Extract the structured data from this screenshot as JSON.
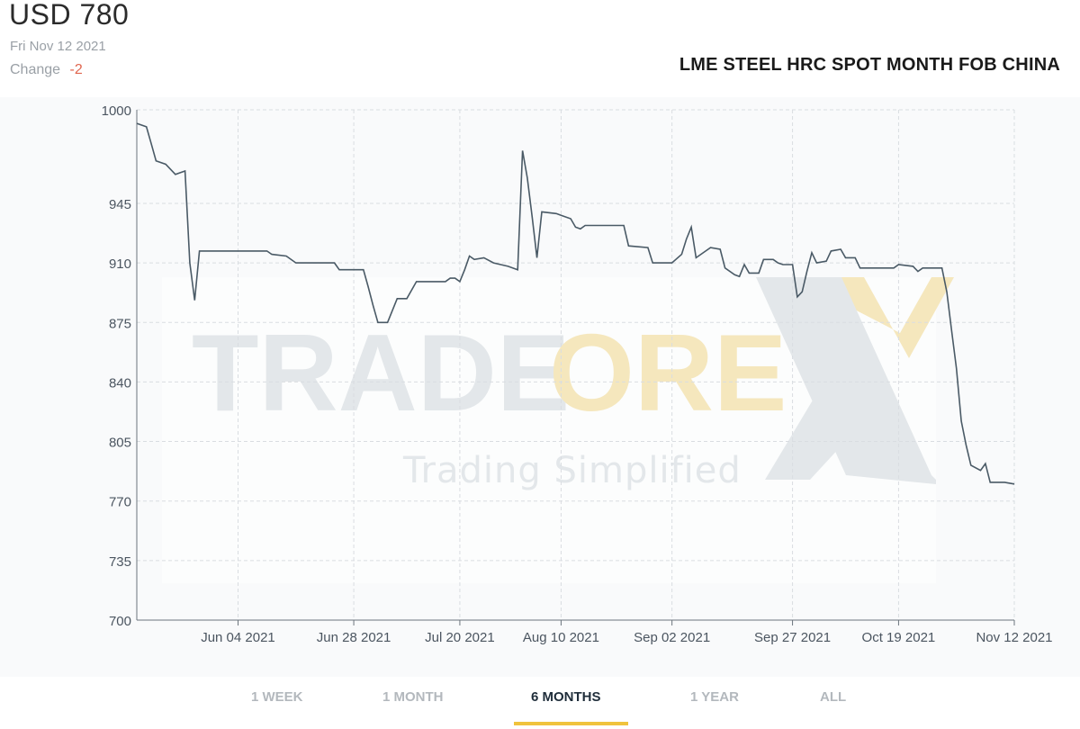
{
  "header": {
    "price": "USD 780",
    "date": "Fri Nov 12 2021",
    "change_label": "Change",
    "change_value": "-2"
  },
  "watermark": {
    "brand_left": "TRADE",
    "brand_mid": "ORE",
    "tagline": "Trading Simplified"
  },
  "colors": {
    "line": "#4a5a66",
    "grid": "#d9dde1",
    "change_negative": "#e0664f",
    "tab_active_underline": "#f0c33c",
    "watermark_gold": "#f3e3b3",
    "watermark_gray": "#e7eaec"
  },
  "tabs": [
    {
      "label": "1 WEEK",
      "active": false
    },
    {
      "label": "1 MONTH",
      "active": false
    },
    {
      "label": "6 MONTHS",
      "active": true
    },
    {
      "label": "1 YEAR",
      "active": false
    },
    {
      "label": "ALL",
      "active": false
    }
  ],
  "chart_data": {
    "type": "line",
    "title": "LME STEEL HRC SPOT MONTH FOB CHINA",
    "xlabel": "",
    "ylabel": "",
    "ylim": [
      700,
      1000
    ],
    "y_ticks": [
      1000,
      945,
      910,
      875,
      840,
      805,
      770,
      735,
      700
    ],
    "x_tick_labels": [
      "Jun 04 2021",
      "Jun 28 2021",
      "Jul 20 2021",
      "Aug 10 2021",
      "Sep 02 2021",
      "Sep 27 2021",
      "Oct 19 2021",
      "Nov 12 2021"
    ],
    "x_range": [
      "2021-05-14",
      "2021-11-12"
    ],
    "grid": true,
    "series": [
      {
        "points": [
          [
            "2021-05-14",
            992
          ],
          [
            "2021-05-16",
            990
          ],
          [
            "2021-05-17",
            980
          ],
          [
            "2021-05-18",
            970
          ],
          [
            "2021-05-20",
            968
          ],
          [
            "2021-05-22",
            962
          ],
          [
            "2021-05-23",
            963
          ],
          [
            "2021-05-24",
            964
          ],
          [
            "2021-05-25",
            910
          ],
          [
            "2021-05-26",
            888
          ],
          [
            "2021-05-27",
            917
          ],
          [
            "2021-06-10",
            917
          ],
          [
            "2021-06-11",
            915
          ],
          [
            "2021-06-14",
            914
          ],
          [
            "2021-06-16",
            910
          ],
          [
            "2021-06-24",
            910
          ],
          [
            "2021-06-25",
            906
          ],
          [
            "2021-06-30",
            906
          ],
          [
            "2021-07-01",
            896
          ],
          [
            "2021-07-02",
            885
          ],
          [
            "2021-07-03",
            875
          ],
          [
            "2021-07-05",
            875
          ],
          [
            "2021-07-07",
            889
          ],
          [
            "2021-07-09",
            889
          ],
          [
            "2021-07-11",
            899
          ],
          [
            "2021-07-17",
            899
          ],
          [
            "2021-07-18",
            901
          ],
          [
            "2021-07-19",
            901
          ],
          [
            "2021-07-20",
            899
          ],
          [
            "2021-07-21",
            906
          ],
          [
            "2021-07-22",
            914
          ],
          [
            "2021-07-23",
            912
          ],
          [
            "2021-07-25",
            913
          ],
          [
            "2021-07-27",
            910
          ],
          [
            "2021-07-30",
            908
          ],
          [
            "2021-08-01",
            906
          ],
          [
            "2021-08-02",
            976
          ],
          [
            "2021-08-03",
            960
          ],
          [
            "2021-08-04",
            937
          ],
          [
            "2021-08-05",
            913
          ],
          [
            "2021-08-06",
            940
          ],
          [
            "2021-08-09",
            939
          ],
          [
            "2021-08-10",
            938
          ],
          [
            "2021-08-12",
            936
          ],
          [
            "2021-08-13",
            931
          ],
          [
            "2021-08-14",
            930
          ],
          [
            "2021-08-15",
            932
          ],
          [
            "2021-08-23",
            932
          ],
          [
            "2021-08-24",
            920
          ],
          [
            "2021-08-28",
            919
          ],
          [
            "2021-08-29",
            910
          ],
          [
            "2021-09-02",
            910
          ],
          [
            "2021-09-04",
            915
          ],
          [
            "2021-09-05",
            924
          ],
          [
            "2021-09-06",
            931
          ],
          [
            "2021-09-07",
            913
          ],
          [
            "2021-09-09",
            917
          ],
          [
            "2021-09-10",
            919
          ],
          [
            "2021-09-12",
            918
          ],
          [
            "2021-09-13",
            907
          ],
          [
            "2021-09-15",
            903
          ],
          [
            "2021-09-16",
            902
          ],
          [
            "2021-09-17",
            909
          ],
          [
            "2021-09-18",
            904
          ],
          [
            "2021-09-20",
            904
          ],
          [
            "2021-09-21",
            912
          ],
          [
            "2021-09-23",
            912
          ],
          [
            "2021-09-24",
            910
          ],
          [
            "2021-09-25",
            909
          ],
          [
            "2021-09-27",
            909
          ],
          [
            "2021-09-28",
            890
          ],
          [
            "2021-09-29",
            893
          ],
          [
            "2021-09-30",
            905
          ],
          [
            "2021-10-01",
            916
          ],
          [
            "2021-10-02",
            910
          ],
          [
            "2021-10-04",
            911
          ],
          [
            "2021-10-05",
            917
          ],
          [
            "2021-10-07",
            918
          ],
          [
            "2021-10-08",
            913
          ],
          [
            "2021-10-10",
            913
          ],
          [
            "2021-10-11",
            907
          ],
          [
            "2021-10-18",
            907
          ],
          [
            "2021-10-19",
            909
          ],
          [
            "2021-10-22",
            908
          ],
          [
            "2021-10-23",
            905
          ],
          [
            "2021-10-24",
            907
          ],
          [
            "2021-10-28",
            907
          ],
          [
            "2021-10-29",
            893
          ],
          [
            "2021-10-30",
            870
          ],
          [
            "2021-10-31",
            848
          ],
          [
            "2021-11-01",
            817
          ],
          [
            "2021-11-02",
            803
          ],
          [
            "2021-11-03",
            791
          ],
          [
            "2021-11-05",
            788
          ],
          [
            "2021-11-06",
            792
          ],
          [
            "2021-11-07",
            781
          ],
          [
            "2021-11-10",
            781
          ],
          [
            "2021-11-12",
            780
          ]
        ]
      }
    ]
  }
}
